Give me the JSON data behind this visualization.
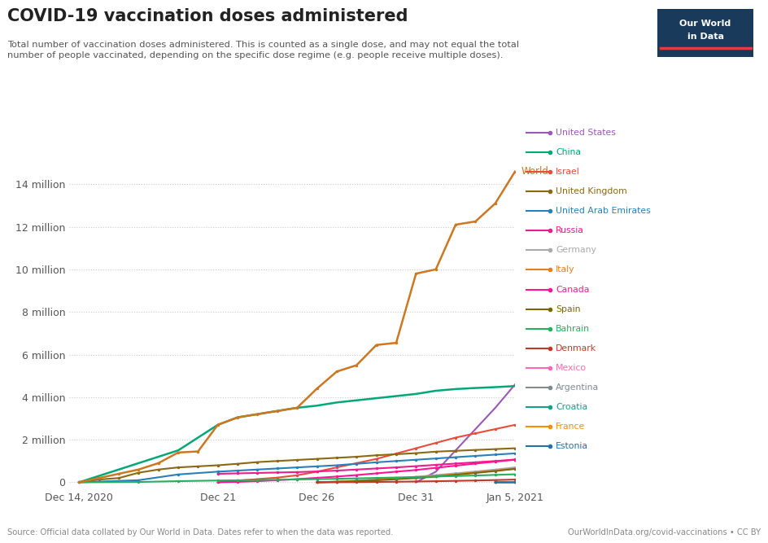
{
  "title": "COVID-19 vaccination doses administered",
  "subtitle": "Total number of vaccination doses administered. This is counted as a single dose, and may not equal the total\nnumber of people vaccinated, depending on the specific dose regime (e.g. people receive multiple doses).",
  "source": "Source: Official data collated by Our World in Data. Dates refer to when the data was reported.",
  "url": "OurWorldInData.org/covid-vaccinations • CC BY",
  "background_color": "#ffffff",
  "x_tick_labels": [
    "Dec 14, 2020",
    "Dec 21",
    "Dec 26",
    "Dec 31",
    "Jan 5, 2021"
  ],
  "x_tick_positions": [
    0,
    7,
    12,
    17,
    22
  ],
  "ytick_labels": [
    "0",
    "2 million",
    "4 million",
    "6 million",
    "8 million",
    "10 million",
    "12 million",
    "14 million"
  ],
  "ytick_values": [
    0,
    2000000,
    4000000,
    6000000,
    8000000,
    10000000,
    12000000,
    14000000
  ],
  "series": [
    {
      "name": "World",
      "color": "#CC7722",
      "marker": true,
      "linewidth": 1.8,
      "data": [
        [
          0,
          0
        ],
        [
          1,
          200000
        ],
        [
          2,
          400000
        ],
        [
          3,
          600000
        ],
        [
          4,
          900000
        ],
        [
          5,
          1400000
        ],
        [
          6,
          1450000
        ],
        [
          7,
          2700000
        ],
        [
          8,
          3050000
        ],
        [
          9,
          3200000
        ],
        [
          10,
          3350000
        ],
        [
          11,
          3500000
        ],
        [
          12,
          4400000
        ],
        [
          13,
          5200000
        ],
        [
          14,
          5500000
        ],
        [
          15,
          6450000
        ],
        [
          16,
          6550000
        ],
        [
          17,
          9800000
        ],
        [
          18,
          10000000
        ],
        [
          19,
          12100000
        ],
        [
          20,
          12250000
        ],
        [
          21,
          13100000
        ],
        [
          22,
          14600000
        ]
      ]
    },
    {
      "name": "United States",
      "color": "#9B59B6",
      "marker": false,
      "linewidth": 1.5,
      "data": [
        [
          17,
          0
        ],
        [
          18,
          500000
        ],
        [
          19,
          1500000
        ],
        [
          20,
          2500000
        ],
        [
          21,
          3500000
        ],
        [
          22,
          4600000
        ]
      ]
    },
    {
      "name": "China",
      "color": "#00A878",
      "marker": false,
      "linewidth": 1.8,
      "data": [
        [
          0,
          0
        ],
        [
          5,
          1500000
        ],
        [
          7,
          2700000
        ],
        [
          8,
          3050000
        ],
        [
          9,
          3200000
        ],
        [
          10,
          3350000
        ],
        [
          11,
          3500000
        ],
        [
          12,
          3600000
        ],
        [
          13,
          3750000
        ],
        [
          14,
          3850000
        ],
        [
          15,
          3950000
        ],
        [
          16,
          4050000
        ],
        [
          17,
          4150000
        ],
        [
          18,
          4300000
        ],
        [
          19,
          4380000
        ],
        [
          20,
          4430000
        ],
        [
          21,
          4470000
        ],
        [
          22,
          4520000
        ]
      ]
    },
    {
      "name": "Israel",
      "color": "#E74C3C",
      "marker": true,
      "linewidth": 1.5,
      "data": [
        [
          7,
          0
        ],
        [
          8,
          80000
        ],
        [
          9,
          150000
        ],
        [
          10,
          220000
        ],
        [
          11,
          330000
        ],
        [
          12,
          500000
        ],
        [
          13,
          700000
        ],
        [
          14,
          900000
        ],
        [
          15,
          1100000
        ],
        [
          16,
          1350000
        ],
        [
          17,
          1600000
        ],
        [
          18,
          1850000
        ],
        [
          19,
          2100000
        ],
        [
          20,
          2300000
        ],
        [
          21,
          2500000
        ],
        [
          22,
          2700000
        ]
      ]
    },
    {
      "name": "United Kingdom",
      "color": "#8B6914",
      "marker": true,
      "linewidth": 1.5,
      "data": [
        [
          0,
          0
        ],
        [
          1,
          130000
        ],
        [
          2,
          200000
        ],
        [
          3,
          450000
        ],
        [
          4,
          600000
        ],
        [
          5,
          700000
        ],
        [
          6,
          750000
        ],
        [
          7,
          800000
        ],
        [
          8,
          870000
        ],
        [
          9,
          950000
        ],
        [
          10,
          1000000
        ],
        [
          11,
          1050000
        ],
        [
          12,
          1100000
        ],
        [
          13,
          1150000
        ],
        [
          14,
          1200000
        ],
        [
          15,
          1270000
        ],
        [
          16,
          1320000
        ],
        [
          17,
          1370000
        ],
        [
          18,
          1440000
        ],
        [
          19,
          1480000
        ],
        [
          20,
          1520000
        ],
        [
          21,
          1560000
        ],
        [
          22,
          1600000
        ]
      ]
    },
    {
      "name": "United Arab Emirates",
      "color": "#2980B9",
      "marker": true,
      "linewidth": 1.5,
      "data": [
        [
          0,
          0
        ],
        [
          3,
          100000
        ],
        [
          5,
          370000
        ],
        [
          7,
          500000
        ],
        [
          8,
          550000
        ],
        [
          9,
          600000
        ],
        [
          10,
          650000
        ],
        [
          11,
          700000
        ],
        [
          12,
          750000
        ],
        [
          13,
          800000
        ],
        [
          14,
          870000
        ],
        [
          15,
          940000
        ],
        [
          16,
          1000000
        ],
        [
          17,
          1060000
        ],
        [
          18,
          1120000
        ],
        [
          19,
          1180000
        ],
        [
          20,
          1240000
        ],
        [
          21,
          1300000
        ],
        [
          22,
          1360000
        ]
      ]
    },
    {
      "name": "Russia",
      "color": "#E91E8C",
      "marker": true,
      "linewidth": 1.5,
      "data": [
        [
          7,
          400000
        ],
        [
          8,
          420000
        ],
        [
          9,
          440000
        ],
        [
          10,
          460000
        ],
        [
          11,
          480000
        ],
        [
          12,
          510000
        ],
        [
          13,
          550000
        ],
        [
          14,
          600000
        ],
        [
          15,
          650000
        ],
        [
          16,
          700000
        ],
        [
          17,
          760000
        ],
        [
          18,
          820000
        ],
        [
          19,
          880000
        ],
        [
          20,
          940000
        ],
        [
          21,
          1000000
        ],
        [
          22,
          1070000
        ]
      ]
    },
    {
      "name": "Germany",
      "color": "#AAAAAA",
      "marker": true,
      "linewidth": 1.5,
      "data": [
        [
          12,
          0
        ],
        [
          13,
          35000
        ],
        [
          14,
          80000
        ],
        [
          15,
          130000
        ],
        [
          16,
          190000
        ],
        [
          17,
          260000
        ],
        [
          18,
          340000
        ],
        [
          19,
          420000
        ],
        [
          20,
          510000
        ],
        [
          21,
          600000
        ],
        [
          22,
          700000
        ]
      ]
    },
    {
      "name": "Italy",
      "color": "#E67E22",
      "marker": true,
      "linewidth": 1.5,
      "data": [
        [
          12,
          0
        ],
        [
          13,
          30000
        ],
        [
          14,
          70000
        ],
        [
          15,
          120000
        ],
        [
          16,
          170000
        ],
        [
          17,
          230000
        ],
        [
          18,
          300000
        ],
        [
          19,
          380000
        ],
        [
          20,
          460000
        ],
        [
          21,
          550000
        ],
        [
          22,
          640000
        ]
      ]
    },
    {
      "name": "Canada",
      "color": "#FF1493",
      "marker": true,
      "linewidth": 1.5,
      "data": [
        [
          7,
          0
        ],
        [
          8,
          20000
        ],
        [
          9,
          55000
        ],
        [
          10,
          100000
        ],
        [
          11,
          150000
        ],
        [
          12,
          210000
        ],
        [
          13,
          270000
        ],
        [
          14,
          340000
        ],
        [
          15,
          420000
        ],
        [
          16,
          500000
        ],
        [
          17,
          580000
        ],
        [
          18,
          680000
        ],
        [
          19,
          780000
        ],
        [
          20,
          880000
        ],
        [
          21,
          970000
        ],
        [
          22,
          1060000
        ]
      ]
    },
    {
      "name": "Spain",
      "color": "#7D6608",
      "marker": true,
      "linewidth": 1.5,
      "data": [
        [
          12,
          0
        ],
        [
          13,
          20000
        ],
        [
          14,
          55000
        ],
        [
          15,
          95000
        ],
        [
          16,
          145000
        ],
        [
          17,
          200000
        ],
        [
          18,
          270000
        ],
        [
          19,
          350000
        ],
        [
          20,
          440000
        ],
        [
          21,
          530000
        ],
        [
          22,
          630000
        ]
      ]
    },
    {
      "name": "Bahrain",
      "color": "#27AE60",
      "marker": true,
      "linewidth": 1.5,
      "data": [
        [
          0,
          0
        ],
        [
          3,
          15000
        ],
        [
          5,
          55000
        ],
        [
          7,
          85000
        ],
        [
          8,
          95000
        ],
        [
          9,
          110000
        ],
        [
          10,
          120000
        ],
        [
          11,
          135000
        ],
        [
          12,
          150000
        ],
        [
          13,
          165000
        ],
        [
          14,
          185000
        ],
        [
          15,
          205000
        ],
        [
          16,
          225000
        ],
        [
          17,
          248000
        ],
        [
          18,
          270000
        ],
        [
          19,
          295000
        ],
        [
          20,
          320000
        ],
        [
          21,
          348000
        ],
        [
          22,
          378000
        ]
      ]
    },
    {
      "name": "Denmark",
      "color": "#C0392B",
      "marker": true,
      "linewidth": 1.5,
      "data": [
        [
          12,
          0
        ],
        [
          13,
          4000
        ],
        [
          14,
          10000
        ],
        [
          15,
          18000
        ],
        [
          16,
          27000
        ],
        [
          17,
          38000
        ],
        [
          18,
          52000
        ],
        [
          19,
          68000
        ],
        [
          20,
          86000
        ],
        [
          21,
          106000
        ],
        [
          22,
          128000
        ]
      ]
    },
    {
      "name": "Mexico",
      "color": "#FF69B4",
      "marker": true,
      "linewidth": 1.5,
      "data": [
        [
          21,
          0
        ],
        [
          22,
          10000
        ]
      ]
    },
    {
      "name": "Argentina",
      "color": "#7F8C8D",
      "marker": true,
      "linewidth": 1.5,
      "data": [
        [
          21,
          0
        ],
        [
          22,
          8000
        ]
      ]
    },
    {
      "name": "Croatia",
      "color": "#16A085",
      "marker": true,
      "linewidth": 1.5,
      "data": [
        [
          21,
          0
        ],
        [
          22,
          2000
        ]
      ]
    },
    {
      "name": "France",
      "color": "#FF8C00",
      "marker": true,
      "linewidth": 1.5,
      "data": [
        [
          21,
          0
        ],
        [
          22,
          1000
        ]
      ]
    },
    {
      "name": "Estonia",
      "color": "#2471A3",
      "marker": true,
      "linewidth": 1.5,
      "data": [
        [
          21,
          0
        ],
        [
          22,
          500
        ]
      ]
    }
  ],
  "legend_colors": {
    "United States": "#9B59B6",
    "China": "#00A878",
    "Israel": "#E74C3C",
    "United Kingdom": "#8B6914",
    "United Arab Emirates": "#2980B9",
    "Russia": "#E91E8C",
    "Germany": "#AAAAAA",
    "Italy": "#E67E22",
    "Canada": "#FF1493",
    "Spain": "#7D6608",
    "Bahrain": "#27AE60",
    "Denmark": "#C0392B",
    "Mexico": "#FF69B4",
    "Argentina": "#7F8C8D",
    "Croatia": "#16A085",
    "France": "#FF8C00",
    "Estonia": "#2471A3"
  }
}
